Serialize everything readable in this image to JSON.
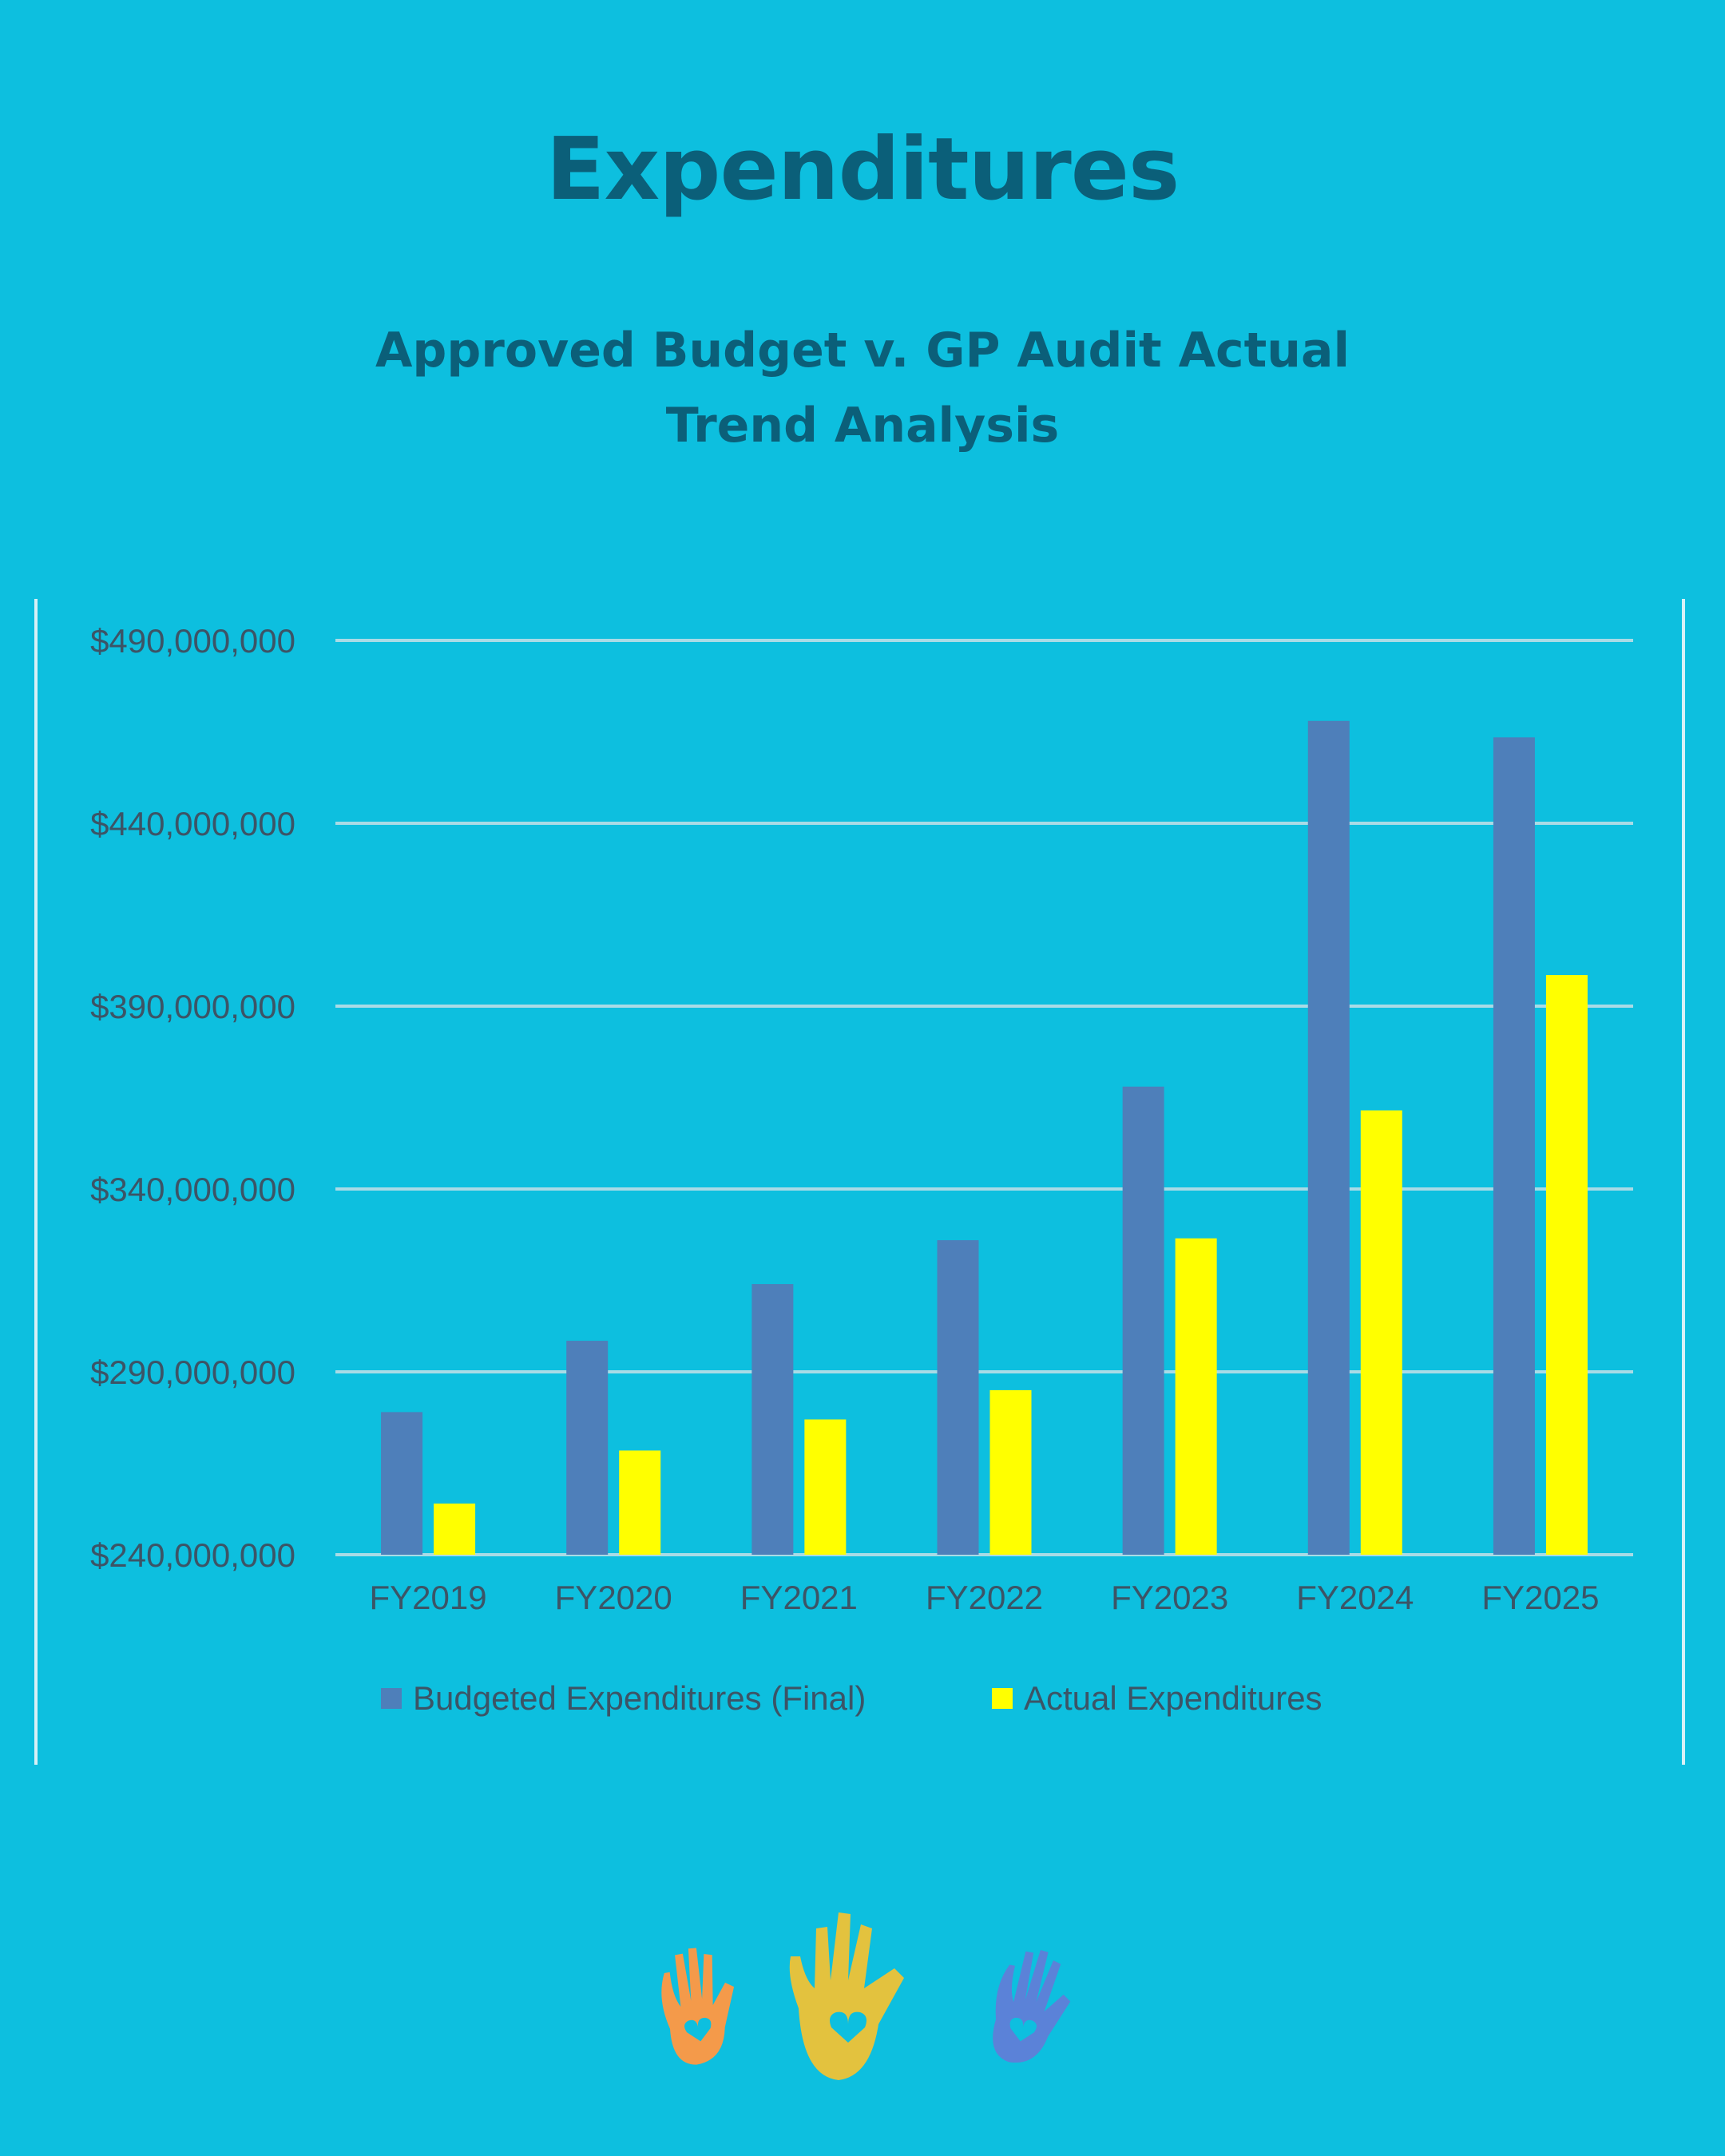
{
  "page": {
    "title": "Expenditures",
    "subtitle_line1": "Approved Budget v. GP Audit Actual",
    "subtitle_line2": "Trend Analysis"
  },
  "colors": {
    "background": "#0dbfdf",
    "heading": "#0b5f79",
    "budgeted": "#4e7fba",
    "actual": "#ffff00",
    "gridline": "#a9dbe6"
  },
  "logo": {
    "icon_names": [
      "orange-hand-heart-icon",
      "yellow-hand-heart-icon",
      "blue-hand-heart-icon"
    ]
  },
  "chart_data": {
    "type": "bar",
    "title": "",
    "xlabel": "",
    "ylabel": "",
    "categories": [
      "FY2019",
      "FY2020",
      "FY2021",
      "FY2022",
      "FY2023",
      "FY2024",
      "FY2025"
    ],
    "series": [
      {
        "name": "Budgeted Expenditures (Final)",
        "color": "#4e7fba",
        "values": [
          279000000,
          298500000,
          314000000,
          326000000,
          368000000,
          468000000,
          463500000
        ]
      },
      {
        "name": "Actual Expenditures",
        "color": "#ffff00",
        "values": [
          254000000,
          268500000,
          277000000,
          285000000,
          326500000,
          361500000,
          398500000
        ]
      }
    ],
    "ylim": [
      240000000,
      490000000
    ],
    "yticks": [
      240000000,
      290000000,
      340000000,
      390000000,
      440000000,
      490000000
    ],
    "ytick_labels": [
      "$240,000,000",
      "$290,000,000",
      "$340,000,000",
      "$390,000,000",
      "$440,000,000",
      "$490,000,000"
    ],
    "grid": true,
    "legend_position": "bottom"
  }
}
